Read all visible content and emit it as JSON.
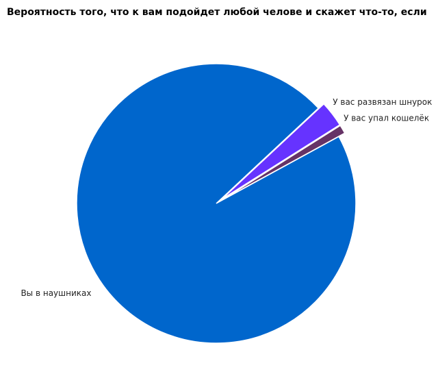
{
  "chart_data": {
    "type": "pie",
    "title": "Вероятность того, что к вам подойдет любой челове и скажет что-то, если",
    "categories": [
      "У вас развязан шнурок",
      "У вас упал кошелёк",
      "Вы в наушниках"
    ],
    "values": [
      3,
      1,
      96
    ],
    "colors": [
      "#6633ff",
      "#663366",
      "#0066cc"
    ],
    "exploded": [
      true,
      true,
      false
    ]
  }
}
